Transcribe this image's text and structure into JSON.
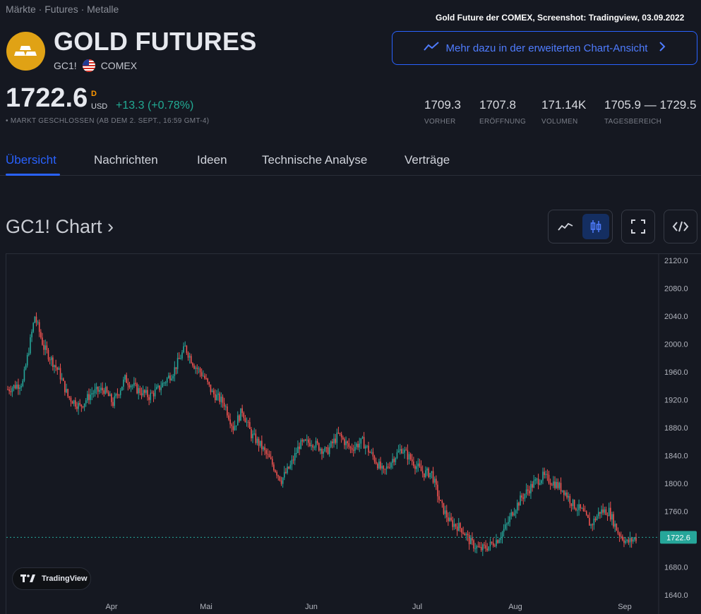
{
  "breadcrumb": "Märkte · Futures · Metalle",
  "caption": "Gold Future der COMEX, Screenshot: Tradingview, 03.09.2022",
  "header": {
    "title": "GOLD FUTURES",
    "symbol": "GC1!",
    "exchange": "COMEX",
    "logo_icon": "gold-bars-icon",
    "logo_color": "#e0a215"
  },
  "ext_button": {
    "label": "Mehr dazu in der erweiterten Chart-Ansicht",
    "icon": "chart-line-icon"
  },
  "quote": {
    "price": "1722.6",
    "flag_d": "D",
    "currency": "USD",
    "change": "+13.3",
    "change_pct": "(+0.78%)",
    "status": "• MARKT GESCHLOSSEN (AB DEM 2. SEPT., 16:59 GMT-4)",
    "change_color": "#22ab94"
  },
  "stats": [
    {
      "value": "1709.3",
      "label": "VORHER"
    },
    {
      "value": "1707.8",
      "label": "ERÖFFNUNG"
    },
    {
      "value": "171.14K",
      "label": "VOLUMEN"
    },
    {
      "value": "1705.9 — 1729.5",
      "label": "TAGESBEREICH"
    }
  ],
  "tabs": [
    {
      "label": "Übersicht",
      "active": true
    },
    {
      "label": "Nachrichten"
    },
    {
      "label": "Ideen"
    },
    {
      "label": "Technische Analyse"
    },
    {
      "label": "Verträge"
    }
  ],
  "chart_section": {
    "title": "GC1! Chart ›"
  },
  "toolbar": {
    "line_icon": "line-chart-icon",
    "candle_icon": "candlestick-icon",
    "fullscreen_icon": "fullscreen-icon",
    "embed_icon": "code-embed-icon"
  },
  "badge": {
    "label": "TradingView"
  },
  "chart_data": {
    "type": "candlestick",
    "x_labels": [
      "Apr",
      "Mai",
      "Jun",
      "Jul",
      "Aug",
      "Sep"
    ],
    "y_ticks": [
      "2120.0",
      "2080.0",
      "2040.0",
      "2000.0",
      "1960.0",
      "1920.0",
      "1880.0",
      "1840.0",
      "1800.0",
      "1760.0",
      "1720.0",
      "1680.0",
      "1640.0"
    ],
    "ylim": [
      1640,
      2120
    ],
    "last_price_label": "1722.6",
    "last_price": 1722.6,
    "up_color": "#26a69a",
    "down_color": "#ef5350",
    "path_anchors": [
      [
        0,
        1935
      ],
      [
        10,
        1945
      ],
      [
        18,
        2040
      ],
      [
        24,
        1995
      ],
      [
        34,
        1960
      ],
      [
        40,
        1925
      ],
      [
        48,
        1910
      ],
      [
        56,
        1930
      ],
      [
        64,
        1935
      ],
      [
        70,
        1915
      ],
      [
        78,
        1950
      ],
      [
        86,
        1935
      ],
      [
        94,
        1925
      ],
      [
        100,
        1935
      ],
      [
        110,
        1960
      ],
      [
        118,
        1995
      ],
      [
        124,
        1970
      ],
      [
        130,
        1955
      ],
      [
        136,
        1930
      ],
      [
        144,
        1915
      ],
      [
        150,
        1880
      ],
      [
        156,
        1905
      ],
      [
        162,
        1870
      ],
      [
        168,
        1855
      ],
      [
        174,
        1835
      ],
      [
        182,
        1805
      ],
      [
        188,
        1825
      ],
      [
        194,
        1855
      ],
      [
        202,
        1860
      ],
      [
        212,
        1845
      ],
      [
        220,
        1870
      ],
      [
        228,
        1850
      ],
      [
        236,
        1860
      ],
      [
        244,
        1835
      ],
      [
        250,
        1815
      ],
      [
        256,
        1835
      ],
      [
        262,
        1850
      ],
      [
        270,
        1830
      ],
      [
        276,
        1815
      ],
      [
        282,
        1815
      ],
      [
        288,
        1770
      ],
      [
        294,
        1745
      ],
      [
        302,
        1735
      ],
      [
        308,
        1715
      ],
      [
        314,
        1705
      ],
      [
        320,
        1710
      ],
      [
        326,
        1720
      ],
      [
        332,
        1740
      ],
      [
        336,
        1760
      ],
      [
        342,
        1780
      ],
      [
        350,
        1800
      ],
      [
        356,
        1810
      ],
      [
        364,
        1800
      ],
      [
        370,
        1790
      ],
      [
        376,
        1770
      ],
      [
        382,
        1760
      ],
      [
        388,
        1740
      ],
      [
        394,
        1760
      ],
      [
        400,
        1760
      ],
      [
        406,
        1730
      ],
      [
        412,
        1715
      ],
      [
        418,
        1722
      ]
    ]
  }
}
